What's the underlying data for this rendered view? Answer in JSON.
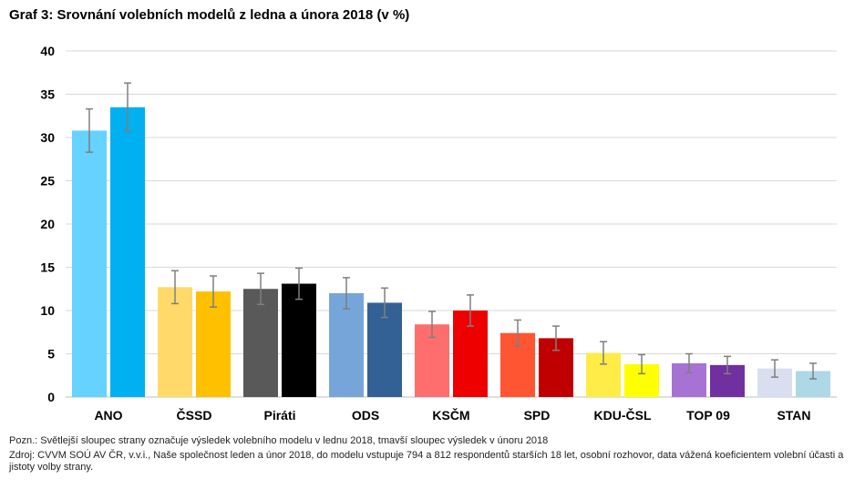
{
  "title": "Graf 3: Srovnání volebních modelů z ledna a února 2018 (v %)",
  "note": "Pozn.: Světlejší sloupec strany označuje výsledek volebního modelu v lednu 2018, tmavší sloupec výsledek v únoru 2018",
  "source": "Zdroj: CVVM SOÚ AV ČR, v.v.i., Naše společnost leden a únor 2018, do modelu vstupuje 794 a 812 respondentů starších 18 let, osobní rozhovor, data vážená koeficientem volební účasti a jistoty volby strany.",
  "chart_data": {
    "type": "bar",
    "title": "Graf 3: Srovnání volebních modelů z ledna a února 2018 (v %)",
    "xlabel": "",
    "ylabel": "",
    "ylim": [
      0,
      40
    ],
    "yticks": [
      "0",
      "5",
      "10",
      "15",
      "20",
      "25",
      "30",
      "35",
      "40"
    ],
    "grid": true,
    "categories": [
      "ANO",
      "ČSSD",
      "Piráti",
      "ODS",
      "KSČM",
      "SPD",
      "KDU-ČSL",
      "TOP 09",
      "STAN"
    ],
    "series": [
      {
        "values": [
          30.8,
          12.7,
          12.5,
          12.0,
          8.4,
          7.4,
          5.1,
          3.9,
          3.3
        ],
        "error": [
          2.5,
          1.9,
          1.8,
          1.8,
          1.5,
          1.5,
          1.3,
          1.1,
          1.0
        ],
        "colors": [
          "#66d2ff",
          "#ffda6a",
          "#595959",
          "#76a5da",
          "#ff6e6e",
          "#ff5533",
          "#ffec46",
          "#a673d4",
          "#d9dff0"
        ]
      },
      {
        "values": [
          33.5,
          12.2,
          13.1,
          10.9,
          10.0,
          6.8,
          3.8,
          3.7,
          3.0
        ],
        "error": [
          2.8,
          1.8,
          1.8,
          1.7,
          1.8,
          1.4,
          1.1,
          1.0,
          0.9
        ],
        "colors": [
          "#00b0f0",
          "#ffc000",
          "#000000",
          "#336196",
          "#ee0000",
          "#c00000",
          "#ffff00",
          "#7030a0",
          "#add8e6"
        ]
      }
    ]
  }
}
